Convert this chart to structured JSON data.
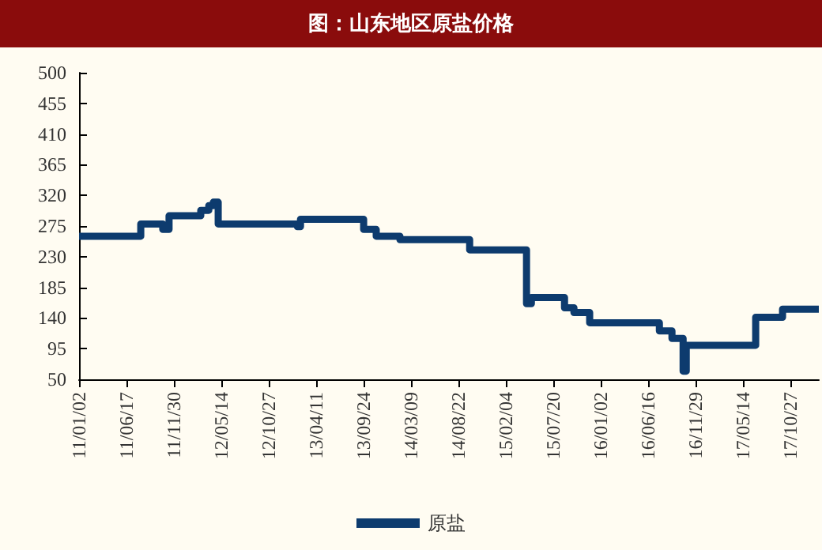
{
  "chart_data": {
    "type": "step",
    "title": "图：山东地区原盐价格",
    "x": [
      "2011-01-02",
      "2011-08-06",
      "2011-10-22",
      "2011-11-13",
      "2012-03-03",
      "2012-03-31",
      "2012-04-16",
      "2012-05-03",
      "2013-02-04",
      "2013-02-15",
      "2013-09-24",
      "2013-11-07",
      "2014-01-29",
      "2014-09-30",
      "2015-04-17",
      "2015-05-04",
      "2015-08-28",
      "2015-09-30",
      "2015-11-24",
      "2016-07-25",
      "2016-09-07",
      "2016-10-16",
      "2016-10-27",
      "2017-06-27",
      "2017-09-29",
      "2018-02-03"
    ],
    "series": [
      {
        "name": "原盐",
        "color": "#0d3b6e",
        "values": [
          260,
          278,
          270,
          290,
          298,
          305,
          310,
          278,
          274,
          285,
          270,
          260,
          255,
          240,
          161,
          170,
          155,
          148,
          133,
          121,
          110,
          62,
          100,
          141,
          153,
          153
        ]
      }
    ],
    "xlim": [
      "2011-01-02",
      "2018-02-03"
    ],
    "xticks": [
      {
        "value": "2011-01-02",
        "label": "11/01/02"
      },
      {
        "value": "2011-06-17",
        "label": "11/06/17"
      },
      {
        "value": "2011-11-30",
        "label": "11/11/30"
      },
      {
        "value": "2012-05-14",
        "label": "12/05/14"
      },
      {
        "value": "2012-10-27",
        "label": "12/10/27"
      },
      {
        "value": "2013-04-11",
        "label": "13/04/11"
      },
      {
        "value": "2013-09-24",
        "label": "13/09/24"
      },
      {
        "value": "2014-03-09",
        "label": "14/03/09"
      },
      {
        "value": "2014-08-22",
        "label": "14/08/22"
      },
      {
        "value": "2015-02-04",
        "label": "15/02/04"
      },
      {
        "value": "2015-07-20",
        "label": "15/07/20"
      },
      {
        "value": "2016-01-02",
        "label": "16/01/02"
      },
      {
        "value": "2016-06-16",
        "label": "16/06/16"
      },
      {
        "value": "2016-11-29",
        "label": "16/11/29"
      },
      {
        "value": "2017-05-14",
        "label": "17/05/14"
      },
      {
        "value": "2017-10-27",
        "label": "17/10/27"
      }
    ],
    "ylim": [
      50,
      500
    ],
    "yticks": [
      50,
      95,
      140,
      185,
      230,
      275,
      320,
      365,
      410,
      455,
      500
    ],
    "grid": false,
    "legend": "bottom",
    "marker": "none",
    "line_style": "solid"
  }
}
